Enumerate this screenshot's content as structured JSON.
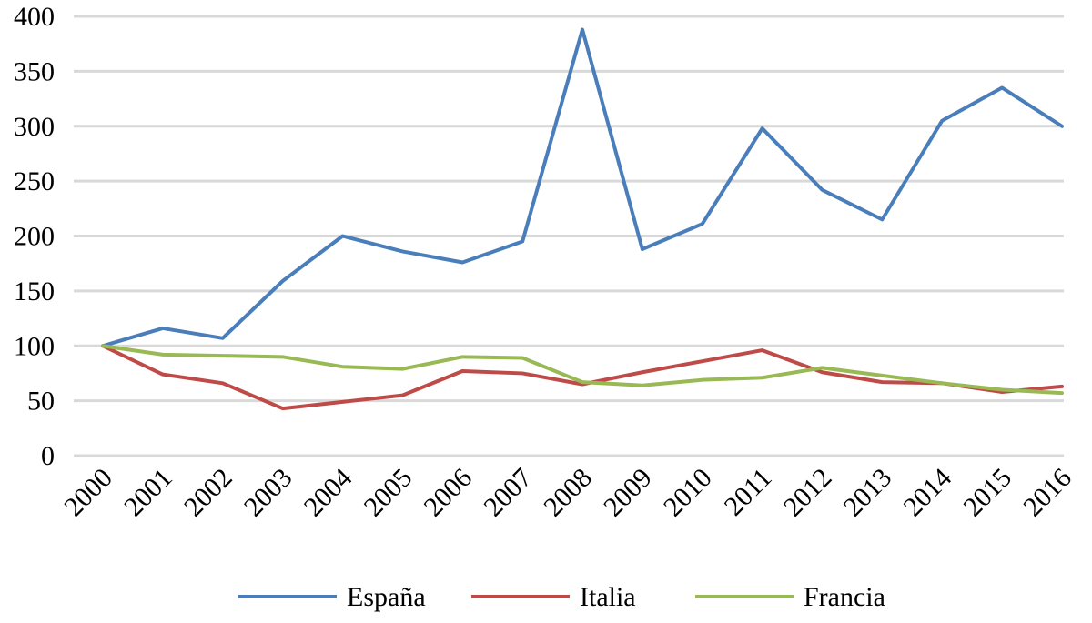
{
  "chart_data": {
    "type": "line",
    "title": "",
    "xlabel": "",
    "ylabel": "",
    "ylim": [
      0,
      400
    ],
    "yticks": [
      0,
      50,
      100,
      150,
      200,
      250,
      300,
      350,
      400
    ],
    "grid": true,
    "legend_position": "bottom",
    "categories": [
      "2000",
      "2001",
      "2002",
      "2003",
      "2004",
      "2005",
      "2006",
      "2007",
      "2008",
      "2009",
      "2010",
      "2011",
      "2012",
      "2013",
      "2014",
      "2015",
      "2016"
    ],
    "series": [
      {
        "name": "España",
        "color": "#4a7ebb",
        "values": [
          100,
          116,
          107,
          159,
          200,
          186,
          176,
          195,
          388,
          188,
          211,
          298,
          242,
          215,
          305,
          335,
          300
        ]
      },
      {
        "name": "Italia",
        "color": "#be4b48",
        "values": [
          100,
          74,
          66,
          43,
          49,
          55,
          77,
          75,
          65,
          76,
          86,
          96,
          76,
          67,
          66,
          58,
          63
        ]
      },
      {
        "name": "Francia",
        "color": "#98b954",
        "values": [
          100,
          92,
          91,
          90,
          81,
          79,
          90,
          89,
          67,
          64,
          69,
          71,
          80,
          73,
          66,
          60,
          57
        ]
      }
    ]
  }
}
